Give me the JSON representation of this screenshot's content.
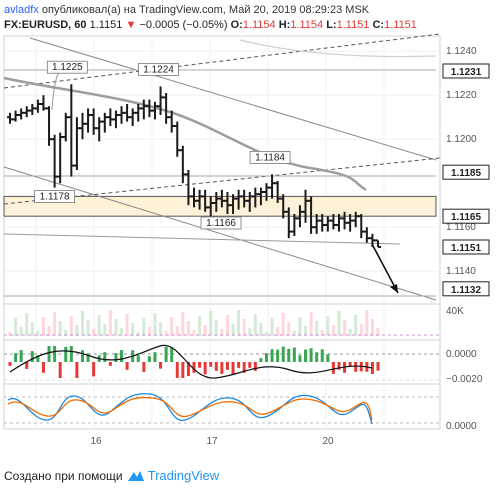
{
  "header": {
    "author": "avladfx",
    "published": "опубликовал(а) на TradingView.com, Май 20, 2019 08:29:23 MSK",
    "symbol": "FX:EURUSD, 60",
    "last": "1.1151",
    "change_arrow": "▼",
    "change": "−0.0005 (−0.05%)",
    "o_label": "O:",
    "o_val": "1.1154",
    "h_label": "H:",
    "h_val": "1.1154",
    "l_label": "L:",
    "l_val": "1.1151",
    "c_label": "C:",
    "c_val": "1.1151"
  },
  "footer": {
    "made_with": "Создано при помощи",
    "brand": "TradingView",
    "logo_icon": "tradingview-logo-icon"
  },
  "colors": {
    "up": "#3aa655",
    "down": "#e53935",
    "bar": "#1a1a1a",
    "band": "#fdf1d8",
    "ma": "#9e9e9e",
    "line_blue": "#1e88e5",
    "line_orange": "#ef6c00",
    "grid": "#eef1f5"
  },
  "chart_data": {
    "type": "ohlc",
    "x_ticks": [
      "16",
      "17",
      "20"
    ],
    "price_axis_labels": [
      "1.1240",
      "1.1220",
      "1.1200",
      "1.1160",
      "1.1140"
    ],
    "highlighted_prices": [
      {
        "label": "1.1231",
        "value": 1.1231,
        "color": "#222222"
      },
      {
        "label": "1.1185",
        "value": 1.1185,
        "color": "#222222"
      },
      {
        "label": "1.1165",
        "value": 1.1165,
        "color": "#222222"
      },
      {
        "label": "1.1151",
        "value": 1.1151,
        "color": "#222222"
      },
      {
        "label": "1.1132",
        "value": 1.1132,
        "color": "#222222"
      }
    ],
    "annotations": [
      {
        "text": "1.1225",
        "value": 1.1225
      },
      {
        "text": "1.1224",
        "value": 1.1224
      },
      {
        "text": "1.1184",
        "value": 1.1184
      },
      {
        "text": "1.1178",
        "value": 1.1178
      },
      {
        "text": "1.1166",
        "value": 1.1166
      }
    ],
    "zone": {
      "from": 1.1165,
      "to": 1.1174
    },
    "ohlc": [
      [
        1.121,
        1.1212,
        1.1207,
        1.1209
      ],
      [
        1.1209,
        1.1213,
        1.1208,
        1.1211
      ],
      [
        1.1211,
        1.1214,
        1.1209,
        1.1212
      ],
      [
        1.1212,
        1.1215,
        1.121,
        1.1213
      ],
      [
        1.1213,
        1.1216,
        1.1211,
        1.1214
      ],
      [
        1.1214,
        1.1218,
        1.1212,
        1.1216
      ],
      [
        1.1216,
        1.122,
        1.1213,
        1.1214
      ],
      [
        1.1214,
        1.1215,
        1.1197,
        1.12
      ],
      [
        1.12,
        1.1202,
        1.1178,
        1.1183
      ],
      [
        1.1183,
        1.1203,
        1.118,
        1.1201
      ],
      [
        1.1201,
        1.1212,
        1.1199,
        1.121
      ],
      [
        1.121,
        1.1225,
        1.1183,
        1.1188
      ],
      [
        1.1188,
        1.121,
        1.1186,
        1.1205
      ],
      [
        1.1205,
        1.1212,
        1.12,
        1.1207
      ],
      [
        1.1207,
        1.1214,
        1.1203,
        1.1211
      ],
      [
        1.1211,
        1.1214,
        1.1202,
        1.1205
      ],
      [
        1.1205,
        1.121,
        1.1199,
        1.1208
      ],
      [
        1.1208,
        1.1212,
        1.1203,
        1.121
      ],
      [
        1.121,
        1.1214,
        1.1206,
        1.1209
      ],
      [
        1.1209,
        1.1213,
        1.1205,
        1.1211
      ],
      [
        1.1211,
        1.1215,
        1.1207,
        1.1212
      ],
      [
        1.1212,
        1.1216,
        1.1208,
        1.121
      ],
      [
        1.121,
        1.1214,
        1.1206,
        1.1212
      ],
      [
        1.1212,
        1.1216,
        1.1208,
        1.1214
      ],
      [
        1.1214,
        1.1218,
        1.1209,
        1.1215
      ],
      [
        1.1215,
        1.1218,
        1.121,
        1.1213
      ],
      [
        1.1213,
        1.1217,
        1.1209,
        1.1215
      ],
      [
        1.1215,
        1.1224,
        1.1211,
        1.1219
      ],
      [
        1.1219,
        1.1221,
        1.1207,
        1.121
      ],
      [
        1.121,
        1.1213,
        1.1203,
        1.1206
      ],
      [
        1.1206,
        1.1208,
        1.1192,
        1.1195
      ],
      [
        1.1195,
        1.1197,
        1.118,
        1.1184
      ],
      [
        1.1184,
        1.1186,
        1.117,
        1.1174
      ],
      [
        1.1174,
        1.1178,
        1.1169,
        1.1172
      ],
      [
        1.1172,
        1.1177,
        1.1168,
        1.1174
      ],
      [
        1.1174,
        1.1177,
        1.1167,
        1.1169
      ],
      [
        1.1169,
        1.1174,
        1.1165,
        1.1171
      ],
      [
        1.1171,
        1.1176,
        1.1167,
        1.1173
      ],
      [
        1.1173,
        1.1177,
        1.1169,
        1.1172
      ],
      [
        1.1172,
        1.1176,
        1.1166,
        1.117
      ],
      [
        1.117,
        1.1175,
        1.1166,
        1.1173
      ],
      [
        1.1173,
        1.1177,
        1.1168,
        1.1174
      ],
      [
        1.1174,
        1.1177,
        1.1169,
        1.1172
      ],
      [
        1.1172,
        1.1176,
        1.1167,
        1.1174
      ],
      [
        1.1174,
        1.1178,
        1.1169,
        1.1175
      ],
      [
        1.1175,
        1.1178,
        1.117,
        1.1176
      ],
      [
        1.1176,
        1.118,
        1.1172,
        1.1178
      ],
      [
        1.1178,
        1.1184,
        1.1173,
        1.118
      ],
      [
        1.118,
        1.1181,
        1.1171,
        1.1173
      ],
      [
        1.1173,
        1.1175,
        1.1164,
        1.1167
      ],
      [
        1.1167,
        1.1169,
        1.1155,
        1.1158
      ],
      [
        1.1158,
        1.1166,
        1.1156,
        1.1164
      ],
      [
        1.1164,
        1.117,
        1.116,
        1.1167
      ],
      [
        1.1167,
        1.1177,
        1.1162,
        1.1172
      ],
      [
        1.1172,
        1.1174,
        1.1157,
        1.116
      ],
      [
        1.116,
        1.1166,
        1.1157,
        1.1163
      ],
      [
        1.1163,
        1.1166,
        1.1158,
        1.1161
      ],
      [
        1.1161,
        1.1165,
        1.1158,
        1.1163
      ],
      [
        1.1163,
        1.1166,
        1.1159,
        1.1161
      ],
      [
        1.1161,
        1.1166,
        1.1158,
        1.1164
      ],
      [
        1.1164,
        1.1167,
        1.1159,
        1.1162
      ],
      [
        1.1162,
        1.1166,
        1.1158,
        1.1163
      ],
      [
        1.1163,
        1.1167,
        1.116,
        1.1165
      ],
      [
        1.1165,
        1.1166,
        1.1155,
        1.1158
      ],
      [
        1.1158,
        1.116,
        1.1153,
        1.1155
      ],
      [
        1.1155,
        1.1157,
        1.1151,
        1.1154
      ],
      [
        1.1154,
        1.1154,
        1.1151,
        1.1151
      ]
    ]
  }
}
